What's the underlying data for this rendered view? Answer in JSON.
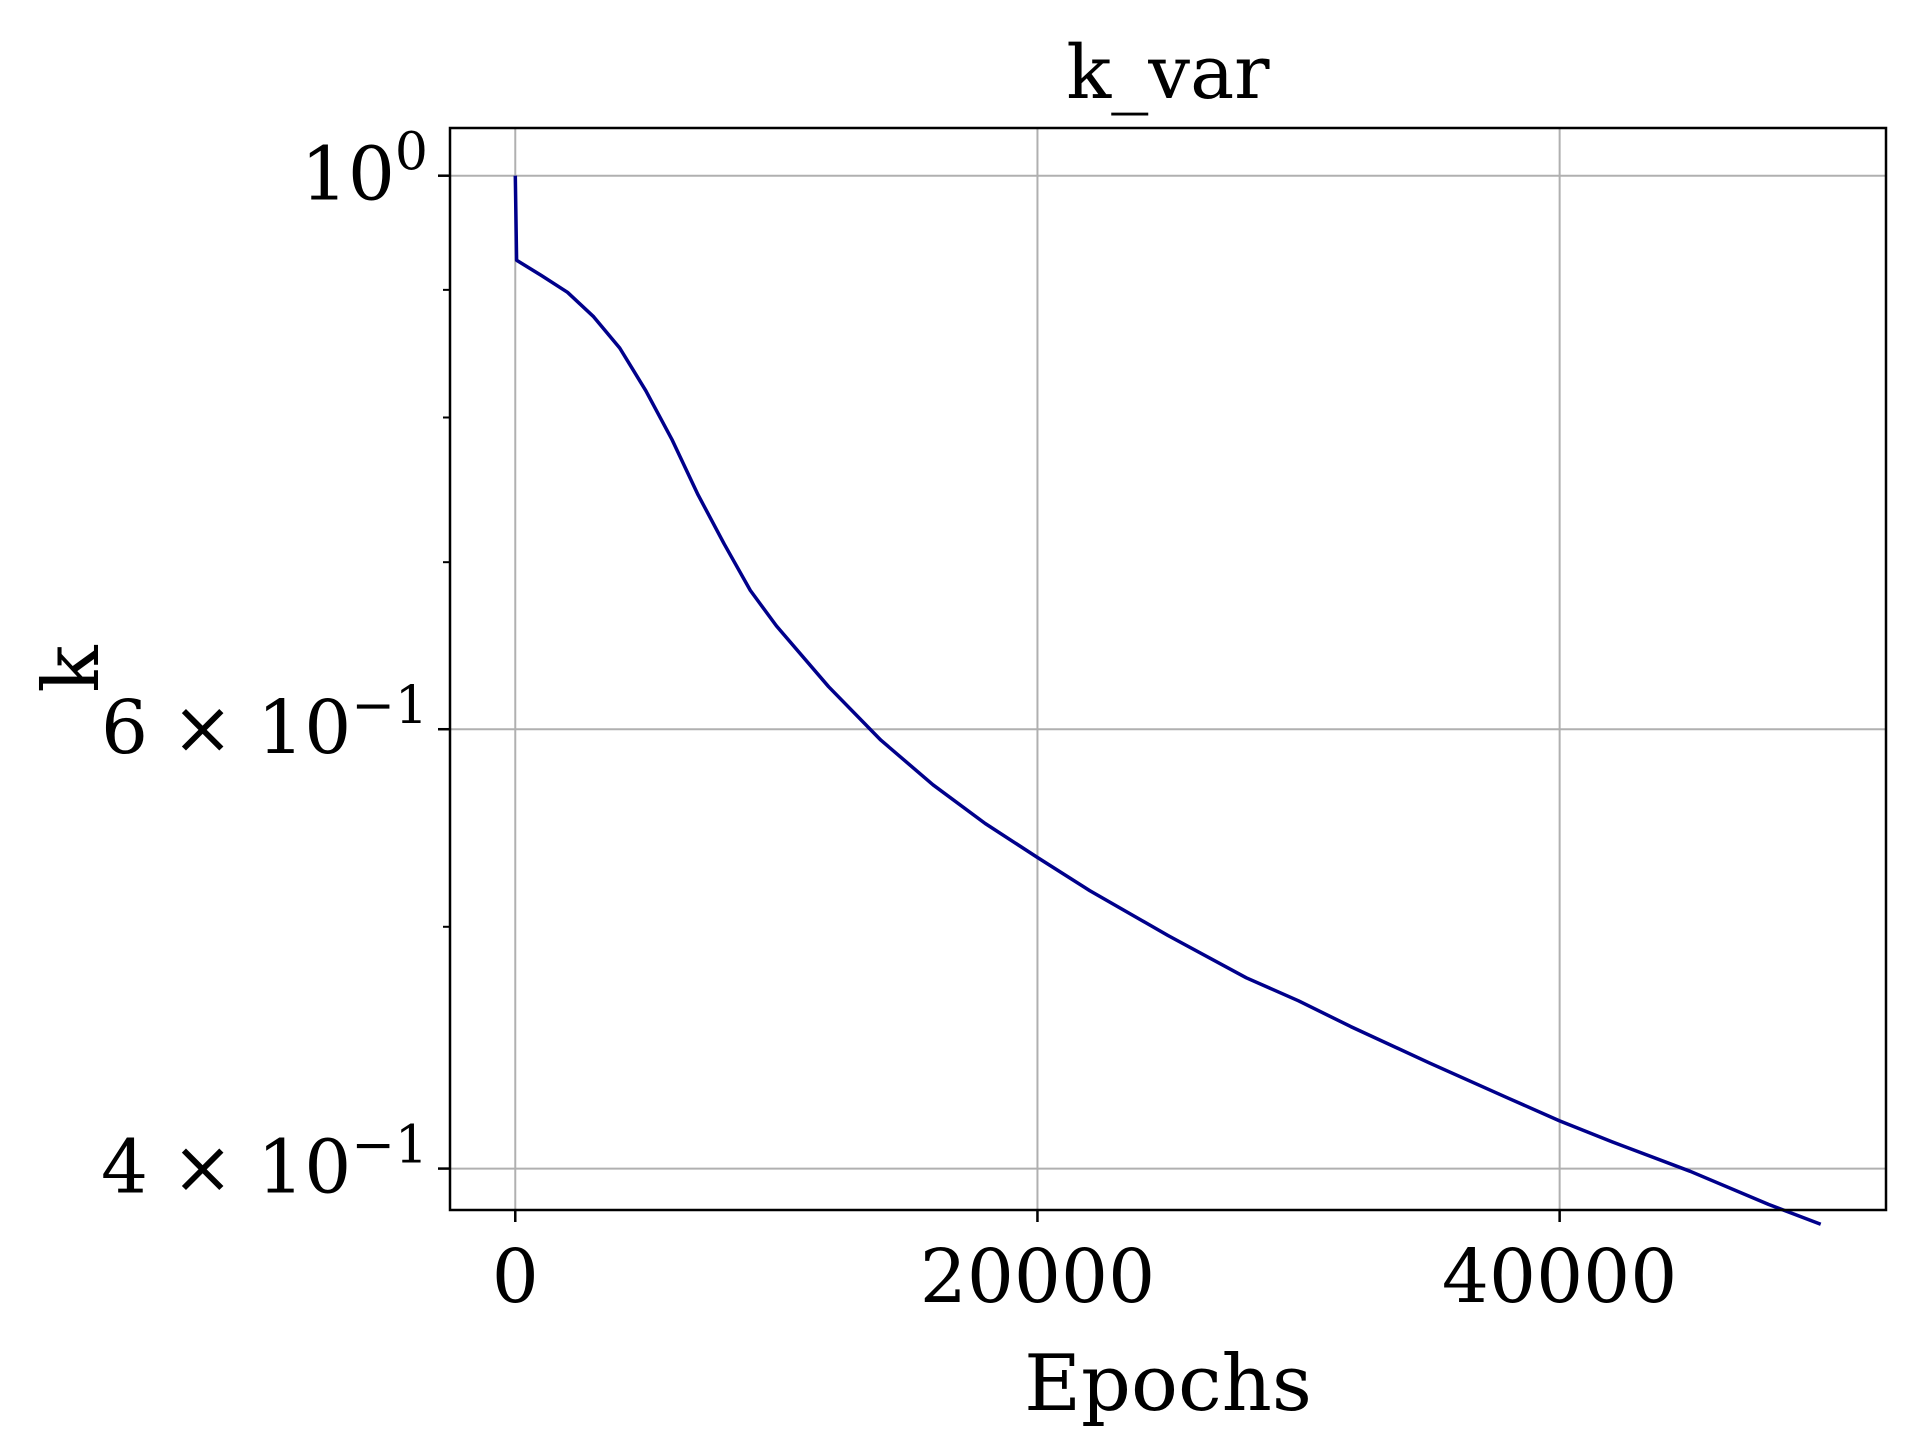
{
  "chart_data": {
    "type": "line",
    "title": "k_var",
    "xlabel": "Epochs",
    "ylabel": "k",
    "y_scale": "log",
    "grid": true,
    "xlim": [
      -2500,
      52500
    ],
    "ylim": [
      0.385,
      1.045
    ],
    "x_ticks": [
      {
        "value": 0,
        "label": "0"
      },
      {
        "value": 20000,
        "label": "20000"
      },
      {
        "value": 40000,
        "label": "40000"
      }
    ],
    "y_ticks": [
      {
        "value": 1.0,
        "mantissa": "",
        "base": "10",
        "exp": "0"
      },
      {
        "value": 0.6,
        "mantissa": "6 × ",
        "base": "10",
        "exp": "−1"
      },
      {
        "value": 0.4,
        "mantissa": "4 × ",
        "base": "10",
        "exp": "−1"
      }
    ],
    "y_minor_ticks": [
      0.5,
      0.7,
      0.8,
      0.9
    ],
    "line_color": "#00008b",
    "series": [
      {
        "x": [
          0,
          50,
          1000,
          2000,
          3000,
          4000,
          5000,
          6000,
          7000,
          8000,
          9000,
          10000,
          12000,
          14000,
          16000,
          18000,
          20000,
          22000,
          25000,
          28000,
          30000,
          32000,
          35000,
          38000,
          40000,
          42000,
          45000,
          48000,
          50000
        ],
        "values": [
          1.0,
          0.925,
          0.912,
          0.898,
          0.878,
          0.853,
          0.82,
          0.784,
          0.745,
          0.712,
          0.682,
          0.66,
          0.624,
          0.594,
          0.57,
          0.55,
          0.533,
          0.517,
          0.496,
          0.477,
          0.467,
          0.456,
          0.441,
          0.427,
          0.418,
          0.41,
          0.399,
          0.387,
          0.38
        ]
      }
    ]
  }
}
